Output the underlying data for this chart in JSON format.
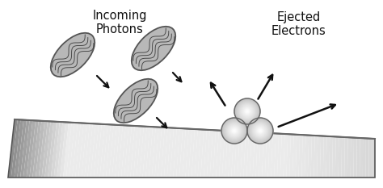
{
  "bg_color": "#ffffff",
  "label_incoming": "Incoming\nPhotons",
  "label_ejected": "Ejected\nElectrons",
  "arrow_color": "#111111",
  "text_color": "#111111",
  "font_size": 10.5,
  "photon_face": "#b8b8b8",
  "photon_edge": "#555555",
  "plate_dark": 0.55,
  "plate_light": 0.92,
  "electron_base": 0.72
}
